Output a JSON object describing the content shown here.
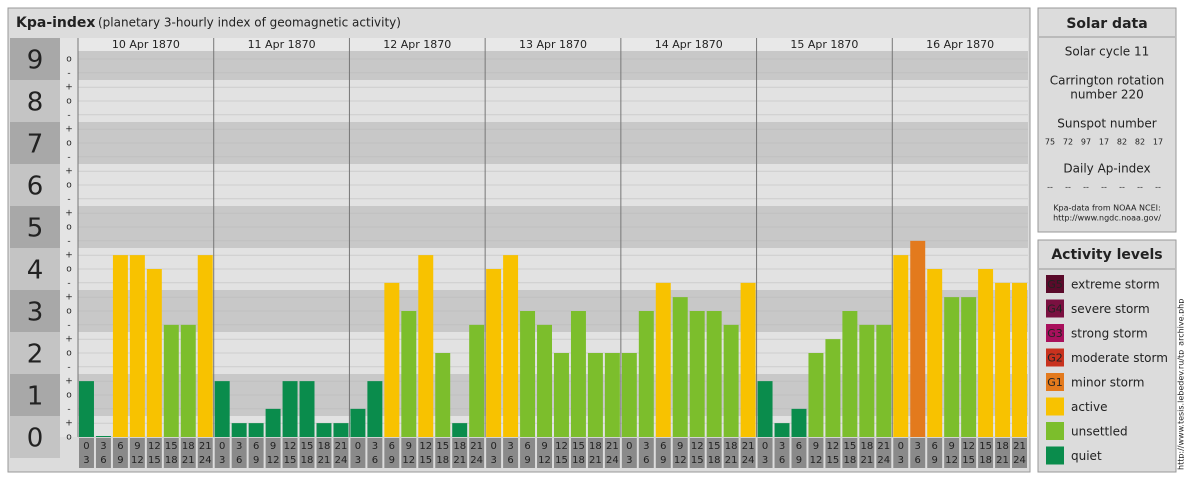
{
  "header": {
    "title": "Kpa-index",
    "subtitle": "(planetary 3-hourly index of geomagnetic activity)"
  },
  "chart_data": {
    "type": "bar",
    "ylim": [
      0,
      9.5
    ],
    "yticks": [
      0,
      1,
      2,
      3,
      4,
      5,
      6,
      7,
      8,
      9
    ],
    "grid": true,
    "minor_ticks": [
      {
        "value": 0,
        "label": "o"
      },
      {
        "value": 0.33,
        "label": "+"
      },
      {
        "value": 0.67,
        "label": "-"
      },
      {
        "value": 1,
        "label": "o"
      },
      {
        "value": 1.33,
        "label": "+"
      },
      {
        "value": 1.67,
        "label": "-"
      },
      {
        "value": 2,
        "label": "o"
      },
      {
        "value": 2.33,
        "label": "+"
      },
      {
        "value": 2.67,
        "label": "-"
      },
      {
        "value": 3,
        "label": "o"
      },
      {
        "value": 3.33,
        "label": "+"
      },
      {
        "value": 3.67,
        "label": "-"
      },
      {
        "value": 4,
        "label": "o"
      },
      {
        "value": 4.33,
        "label": "+"
      },
      {
        "value": 4.67,
        "label": "-"
      },
      {
        "value": 5,
        "label": "o"
      },
      {
        "value": 5.33,
        "label": "+"
      },
      {
        "value": 5.67,
        "label": "-"
      },
      {
        "value": 6,
        "label": "o"
      },
      {
        "value": 6.33,
        "label": "+"
      },
      {
        "value": 6.67,
        "label": "-"
      },
      {
        "value": 7,
        "label": "o"
      },
      {
        "value": 7.33,
        "label": "+"
      },
      {
        "value": 7.67,
        "label": "-"
      },
      {
        "value": 8,
        "label": "o"
      },
      {
        "value": 8.33,
        "label": "+"
      },
      {
        "value": 8.67,
        "label": "-"
      },
      {
        "value": 9,
        "label": "o"
      }
    ],
    "hours": [
      {
        "from": 0,
        "to": 3
      },
      {
        "from": 3,
        "to": 6
      },
      {
        "from": 6,
        "to": 9
      },
      {
        "from": 9,
        "to": 12
      },
      {
        "from": 12,
        "to": 15
      },
      {
        "from": 15,
        "to": 18
      },
      {
        "from": 18,
        "to": 21
      },
      {
        "from": 21,
        "to": 24
      }
    ],
    "days": [
      {
        "date": "10 Apr 1870",
        "values": [
          1.33,
          0,
          4.33,
          4.33,
          4,
          2.67,
          2.67,
          4.33
        ],
        "colors": [
          "#0a8c4c",
          "#0a8c4c",
          "#f8c200",
          "#f8c200",
          "#f8c200",
          "#7cbe2c",
          "#7cbe2c",
          "#f8c200"
        ]
      },
      {
        "date": "11 Apr 1870",
        "values": [
          1.33,
          0.33,
          0.33,
          0.67,
          1.33,
          1.33,
          0.33,
          0.33
        ],
        "colors": [
          "#0a8c4c",
          "#0a8c4c",
          "#0a8c4c",
          "#0a8c4c",
          "#0a8c4c",
          "#0a8c4c",
          "#0a8c4c",
          "#0a8c4c"
        ]
      },
      {
        "date": "12 Apr 1870",
        "values": [
          0.67,
          1.33,
          3.67,
          3,
          4.33,
          2,
          0.33,
          2.67
        ],
        "colors": [
          "#0a8c4c",
          "#0a8c4c",
          "#f8c200",
          "#7cbe2c",
          "#f8c200",
          "#7cbe2c",
          "#0a8c4c",
          "#7cbe2c"
        ]
      },
      {
        "date": "13 Apr 1870",
        "values": [
          4,
          4.33,
          3,
          2.67,
          2,
          3,
          2,
          2
        ],
        "colors": [
          "#f8c200",
          "#f8c200",
          "#7cbe2c",
          "#7cbe2c",
          "#7cbe2c",
          "#7cbe2c",
          "#7cbe2c",
          "#7cbe2c"
        ]
      },
      {
        "date": "14 Apr 1870",
        "values": [
          2,
          3,
          3.67,
          3.33,
          3,
          3,
          2.67,
          3.67
        ],
        "colors": [
          "#7cbe2c",
          "#7cbe2c",
          "#f8c200",
          "#7cbe2c",
          "#7cbe2c",
          "#7cbe2c",
          "#7cbe2c",
          "#f8c200"
        ]
      },
      {
        "date": "15 Apr 1870",
        "values": [
          1.33,
          0.33,
          0.67,
          2,
          2.33,
          3,
          2.67,
          2.67
        ],
        "colors": [
          "#0a8c4c",
          "#0a8c4c",
          "#0a8c4c",
          "#7cbe2c",
          "#7cbe2c",
          "#7cbe2c",
          "#7cbe2c",
          "#7cbe2c"
        ]
      },
      {
        "date": "16 Apr 1870",
        "values": [
          4.33,
          4.67,
          4,
          3.33,
          3.33,
          4,
          3.67,
          3.67
        ],
        "colors": [
          "#f8c200",
          "#e37a1d",
          "#f8c200",
          "#7cbe2c",
          "#7cbe2c",
          "#f8c200",
          "#f8c200",
          "#f8c200"
        ]
      }
    ]
  },
  "solar_data": {
    "title": "Solar data",
    "cycle": "Solar cycle 11",
    "carrington": [
      "Carrington rotation",
      "number 220"
    ],
    "sunspot_title": "Sunspot number",
    "sunspots": [
      75,
      72,
      97,
      17,
      82,
      82,
      17
    ],
    "ap_title": "Daily Ap-index",
    "ap": [
      "--",
      "--",
      "--",
      "--",
      "--",
      "--",
      "--"
    ],
    "source": [
      "Kpa-data from NOAA NCEI:",
      "http://www.ngdc.noaa.gov/"
    ]
  },
  "activity_levels": {
    "title": "Activity levels",
    "items": [
      {
        "code": "G5",
        "name": "extreme storm",
        "color": "#5a0a2a"
      },
      {
        "code": "G4",
        "name": "severe storm",
        "color": "#7a1040"
      },
      {
        "code": "G3",
        "name": "strong storm",
        "color": "#a8105c"
      },
      {
        "code": "G2",
        "name": "moderate storm",
        "color": "#c8321e"
      },
      {
        "code": "G1",
        "name": "minor storm",
        "color": "#e37a1d"
      },
      {
        "code": "",
        "name": "active",
        "color": "#f8c200"
      },
      {
        "code": "",
        "name": "unsettled",
        "color": "#7cbe2c"
      },
      {
        "code": "",
        "name": "quiet",
        "color": "#0a8c4c"
      }
    ]
  },
  "side_url": "http://www.tesis.lebedev.ru/tp_archive.php"
}
